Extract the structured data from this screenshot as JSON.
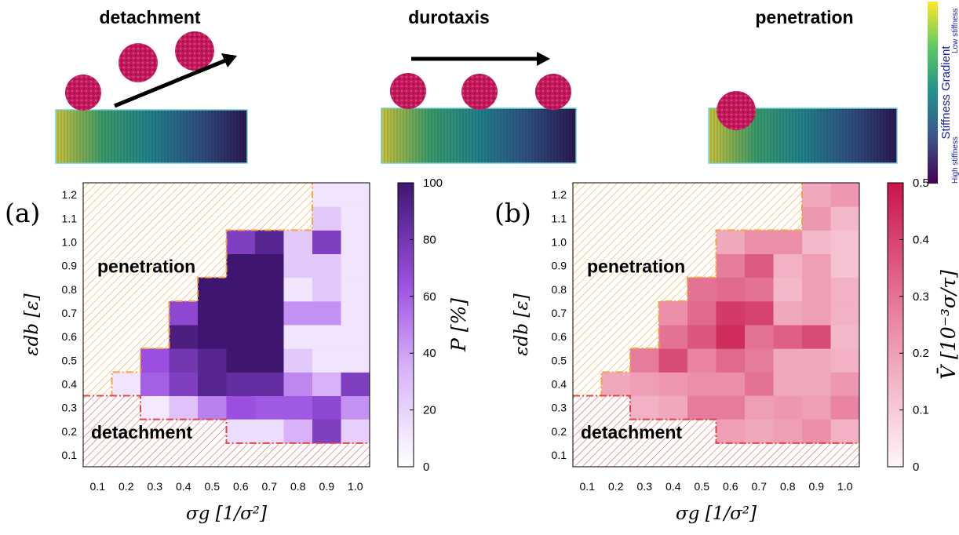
{
  "top_labels": [
    "detachment",
    "durotaxis",
    "penetration"
  ],
  "gradient_bar": {
    "title": "Stiffness Gradient",
    "low": "Low stiffness",
    "high": "High stiffness",
    "colors": [
      "#fde725",
      "#35b779",
      "#21908d",
      "#31688e",
      "#3b528b",
      "#440154"
    ]
  },
  "colors": {
    "particle": "#c2185b",
    "penetration_hatch": "#f6a545",
    "detachment_hatch": "#e05a5a",
    "P_min": "#ffffff",
    "P_mid": "#c08cf5",
    "P_max": "#3e1670",
    "V_min": "#fff5f8",
    "V_max": "#c8144a"
  },
  "chart_data": [
    {
      "type": "heatmap",
      "panel_label": "(a)",
      "xlabel": "σg [1/σ²]",
      "ylabel": "εdb [ε]",
      "x_ticks": [
        "0.1",
        "0.2",
        "0.3",
        "0.4",
        "0.5",
        "0.6",
        "0.7",
        "0.8",
        "0.9",
        "1.0"
      ],
      "y_ticks": [
        "0.1",
        "0.2",
        "0.3",
        "0.4",
        "0.5",
        "0.6",
        "0.7",
        "0.8",
        "0.9",
        "1.0",
        "1.1",
        "1.2"
      ],
      "x_range": [
        0.05,
        1.05
      ],
      "y_range": [
        0.05,
        1.25
      ],
      "colorbar": {
        "label": "P [%]",
        "min": 0,
        "max": 100,
        "ticks": [
          "0",
          "20",
          "40",
          "60",
          "80",
          "100"
        ]
      },
      "region_labels": [
        "penetration",
        "detachment"
      ],
      "penetration_step": [
        [
          0.05,
          0.35
        ],
        [
          0.15,
          0.35
        ],
        [
          0.15,
          0.45
        ],
        [
          0.25,
          0.45
        ],
        [
          0.25,
          0.55
        ],
        [
          0.35,
          0.55
        ],
        [
          0.35,
          0.75
        ],
        [
          0.45,
          0.75
        ],
        [
          0.45,
          0.85
        ],
        [
          0.55,
          0.85
        ],
        [
          0.55,
          1.05
        ],
        [
          0.85,
          1.05
        ],
        [
          0.85,
          1.25
        ]
      ],
      "detachment_step": [
        [
          0.05,
          0.35
        ],
        [
          0.25,
          0.35
        ],
        [
          0.25,
          0.25
        ],
        [
          0.55,
          0.25
        ],
        [
          0.55,
          0.15
        ],
        [
          1.05,
          0.15
        ]
      ],
      "cells": [
        [
          0.2,
          0.4,
          12
        ],
        [
          0.3,
          0.3,
          10
        ],
        [
          0.4,
          0.3,
          28
        ],
        [
          0.5,
          0.3,
          50
        ],
        [
          0.6,
          0.3,
          65
        ],
        [
          0.7,
          0.3,
          62
        ],
        [
          0.8,
          0.3,
          62
        ],
        [
          0.9,
          0.3,
          70
        ],
        [
          1.0,
          0.3,
          45
        ],
        [
          0.6,
          0.2,
          15
        ],
        [
          0.7,
          0.2,
          15
        ],
        [
          0.8,
          0.2,
          35
        ],
        [
          0.9,
          0.2,
          75
        ],
        [
          1.0,
          0.2,
          22
        ],
        [
          0.3,
          0.4,
          60
        ],
        [
          0.4,
          0.4,
          75
        ],
        [
          0.5,
          0.4,
          90
        ],
        [
          0.6,
          0.4,
          85
        ],
        [
          0.7,
          0.4,
          85
        ],
        [
          0.8,
          0.4,
          48
        ],
        [
          0.9,
          0.4,
          35
        ],
        [
          1.0,
          0.4,
          75
        ],
        [
          0.3,
          0.5,
          65
        ],
        [
          0.4,
          0.5,
          80
        ],
        [
          0.5,
          0.5,
          90
        ],
        [
          0.6,
          0.5,
          100
        ],
        [
          0.7,
          0.5,
          100
        ],
        [
          0.8,
          0.5,
          25
        ],
        [
          0.9,
          0.5,
          12
        ],
        [
          1.0,
          0.5,
          12
        ],
        [
          0.4,
          0.6,
          95
        ],
        [
          0.5,
          0.6,
          100
        ],
        [
          0.6,
          0.6,
          100
        ],
        [
          0.7,
          0.6,
          100
        ],
        [
          0.8,
          0.6,
          12
        ],
        [
          0.9,
          0.6,
          12
        ],
        [
          1.0,
          0.6,
          12
        ],
        [
          0.4,
          0.7,
          70
        ],
        [
          0.5,
          0.7,
          100
        ],
        [
          0.6,
          0.7,
          100
        ],
        [
          0.7,
          0.7,
          100
        ],
        [
          0.8,
          0.7,
          45
        ],
        [
          0.9,
          0.7,
          45
        ],
        [
          1.0,
          0.7,
          12
        ],
        [
          0.5,
          0.8,
          100
        ],
        [
          0.6,
          0.8,
          100
        ],
        [
          0.7,
          0.8,
          100
        ],
        [
          0.8,
          0.8,
          12
        ],
        [
          0.9,
          0.8,
          25
        ],
        [
          1.0,
          0.8,
          12
        ],
        [
          0.6,
          0.9,
          100
        ],
        [
          0.7,
          0.9,
          100
        ],
        [
          0.8,
          0.9,
          25
        ],
        [
          0.9,
          0.9,
          25
        ],
        [
          1.0,
          0.9,
          12
        ],
        [
          0.6,
          1.0,
          75
        ],
        [
          0.7,
          1.0,
          90
        ],
        [
          0.8,
          1.0,
          25
        ],
        [
          0.9,
          1.0,
          75
        ],
        [
          1.0,
          1.0,
          12
        ],
        [
          0.9,
          1.1,
          25
        ],
        [
          1.0,
          1.1,
          12
        ],
        [
          0.9,
          1.2,
          12
        ],
        [
          1.0,
          1.2,
          12
        ]
      ]
    },
    {
      "type": "heatmap",
      "panel_label": "(b)",
      "xlabel": "σg [1/σ²]",
      "ylabel": "εdb [ε]",
      "x_ticks": [
        "0.1",
        "0.2",
        "0.3",
        "0.4",
        "0.5",
        "0.6",
        "0.7",
        "0.8",
        "0.9",
        "1.0"
      ],
      "y_ticks": [
        "0.1",
        "0.2",
        "0.3",
        "0.4",
        "0.5",
        "0.6",
        "0.7",
        "0.8",
        "0.9",
        "1.0",
        "1.1",
        "1.2"
      ],
      "x_range": [
        0.05,
        1.05
      ],
      "y_range": [
        0.05,
        1.25
      ],
      "colorbar": {
        "label": "V̄ [10⁻³σ/τ]",
        "min": 0,
        "max": 0.5,
        "ticks": [
          "0",
          "0.1",
          "0.2",
          "0.3",
          "0.4",
          "0.5"
        ]
      },
      "region_labels": [
        "penetration",
        "detachment"
      ],
      "penetration_step": [
        [
          0.05,
          0.35
        ],
        [
          0.15,
          0.35
        ],
        [
          0.15,
          0.45
        ],
        [
          0.25,
          0.45
        ],
        [
          0.25,
          0.55
        ],
        [
          0.35,
          0.55
        ],
        [
          0.35,
          0.75
        ],
        [
          0.45,
          0.75
        ],
        [
          0.45,
          0.85
        ],
        [
          0.55,
          0.85
        ],
        [
          0.55,
          1.05
        ],
        [
          0.85,
          1.05
        ],
        [
          0.85,
          1.25
        ]
      ],
      "detachment_step": [
        [
          0.05,
          0.35
        ],
        [
          0.25,
          0.35
        ],
        [
          0.25,
          0.25
        ],
        [
          0.55,
          0.25
        ],
        [
          0.55,
          0.15
        ],
        [
          1.05,
          0.15
        ]
      ],
      "cells": [
        [
          0.2,
          0.4,
          0.18
        ],
        [
          0.3,
          0.4,
          0.2
        ],
        [
          0.4,
          0.4,
          0.22
        ],
        [
          0.5,
          0.4,
          0.24
        ],
        [
          0.6,
          0.4,
          0.24
        ],
        [
          0.7,
          0.4,
          0.3
        ],
        [
          0.8,
          0.4,
          0.18
        ],
        [
          0.9,
          0.4,
          0.18
        ],
        [
          1.0,
          0.4,
          0.22
        ],
        [
          0.3,
          0.3,
          0.16
        ],
        [
          0.4,
          0.3,
          0.18
        ],
        [
          0.5,
          0.3,
          0.28
        ],
        [
          0.6,
          0.3,
          0.28
        ],
        [
          0.7,
          0.3,
          0.2
        ],
        [
          0.8,
          0.3,
          0.22
        ],
        [
          0.9,
          0.3,
          0.2
        ],
        [
          1.0,
          0.3,
          0.26
        ],
        [
          0.6,
          0.2,
          0.2
        ],
        [
          0.7,
          0.2,
          0.18
        ],
        [
          0.8,
          0.2,
          0.2
        ],
        [
          0.9,
          0.2,
          0.24
        ],
        [
          1.0,
          0.2,
          0.16
        ],
        [
          0.3,
          0.5,
          0.28
        ],
        [
          0.4,
          0.5,
          0.38
        ],
        [
          0.5,
          0.5,
          0.26
        ],
        [
          0.6,
          0.5,
          0.32
        ],
        [
          0.7,
          0.5,
          0.28
        ],
        [
          0.8,
          0.5,
          0.18
        ],
        [
          0.9,
          0.5,
          0.18
        ],
        [
          1.0,
          0.5,
          0.16
        ],
        [
          0.4,
          0.6,
          0.3
        ],
        [
          0.5,
          0.6,
          0.36
        ],
        [
          0.6,
          0.6,
          0.45
        ],
        [
          0.7,
          0.6,
          0.3
        ],
        [
          0.8,
          0.6,
          0.34
        ],
        [
          0.9,
          0.6,
          0.38
        ],
        [
          1.0,
          0.6,
          0.14
        ],
        [
          0.4,
          0.7,
          0.24
        ],
        [
          0.5,
          0.7,
          0.32
        ],
        [
          0.6,
          0.7,
          0.42
        ],
        [
          0.7,
          0.7,
          0.4
        ],
        [
          0.8,
          0.7,
          0.18
        ],
        [
          0.9,
          0.7,
          0.2
        ],
        [
          1.0,
          0.7,
          0.16
        ],
        [
          0.5,
          0.8,
          0.3
        ],
        [
          0.6,
          0.8,
          0.32
        ],
        [
          0.7,
          0.8,
          0.3
        ],
        [
          0.8,
          0.8,
          0.14
        ],
        [
          0.9,
          0.8,
          0.2
        ],
        [
          1.0,
          0.8,
          0.16
        ],
        [
          0.6,
          0.9,
          0.28
        ],
        [
          0.7,
          0.9,
          0.35
        ],
        [
          0.8,
          0.9,
          0.16
        ],
        [
          0.9,
          0.9,
          0.2
        ],
        [
          1.0,
          0.9,
          0.12
        ],
        [
          0.6,
          1.0,
          0.18
        ],
        [
          0.7,
          1.0,
          0.24
        ],
        [
          0.8,
          1.0,
          0.24
        ],
        [
          0.9,
          1.0,
          0.14
        ],
        [
          1.0,
          1.0,
          0.12
        ],
        [
          0.9,
          1.1,
          0.22
        ],
        [
          1.0,
          1.1,
          0.14
        ],
        [
          0.9,
          1.2,
          0.18
        ],
        [
          1.0,
          1.2,
          0.22
        ]
      ]
    }
  ]
}
